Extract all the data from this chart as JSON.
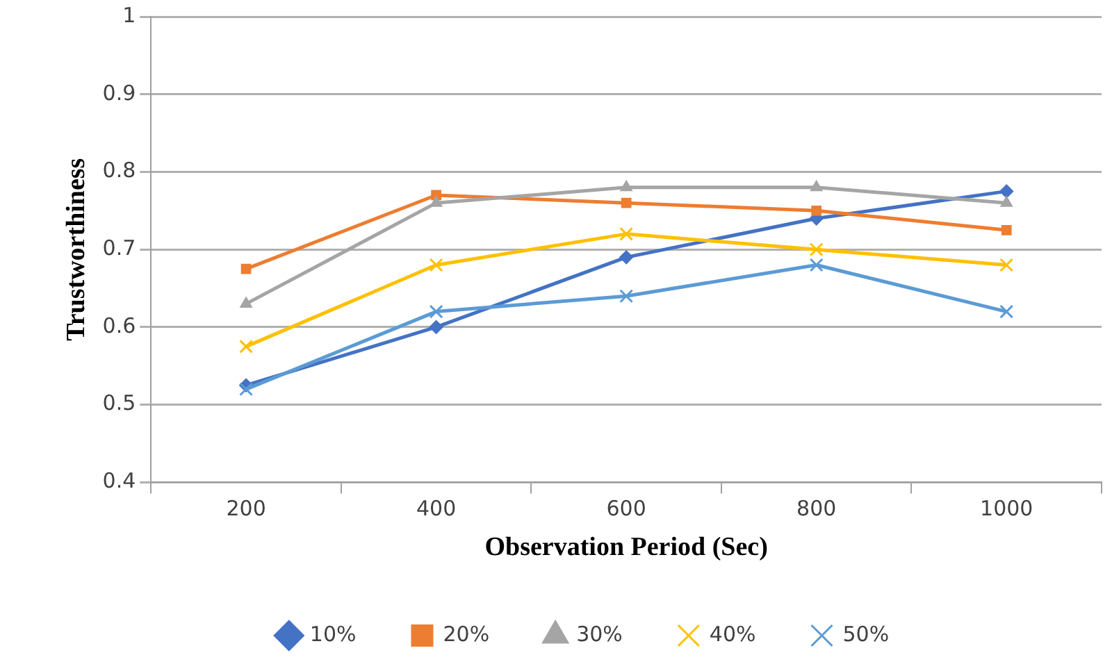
{
  "chart_data": {
    "type": "line",
    "xlabel": "Observation Period (Sec)",
    "ylabel": "Trustworthiness",
    "categories": [
      "200",
      "400",
      "600",
      "800",
      "1000"
    ],
    "ylim": [
      0.4,
      1
    ],
    "yticks": [
      0.4,
      0.5,
      0.6,
      0.7,
      0.8,
      0.9,
      1
    ],
    "grid": "y",
    "legend": "bottom",
    "line_style": "solid",
    "series": [
      {
        "name": "10%",
        "color": "#4472c4",
        "marker": "diamond",
        "values": [
          0.525,
          0.6,
          0.69,
          0.74,
          0.775
        ]
      },
      {
        "name": "20%",
        "color": "#ed7d31",
        "marker": "square",
        "values": [
          0.675,
          0.77,
          0.76,
          0.75,
          0.725
        ]
      },
      {
        "name": "30%",
        "color": "#a5a5a5",
        "marker": "triangle",
        "values": [
          0.63,
          0.76,
          0.78,
          0.78,
          0.76
        ]
      },
      {
        "name": "40%",
        "color": "#ffc000",
        "marker": "cross",
        "values": [
          0.575,
          0.68,
          0.72,
          0.7,
          0.68
        ]
      },
      {
        "name": "50%",
        "color": "#5b9bd5",
        "marker": "cross",
        "values": [
          0.52,
          0.62,
          0.64,
          0.68,
          0.62
        ]
      }
    ]
  }
}
